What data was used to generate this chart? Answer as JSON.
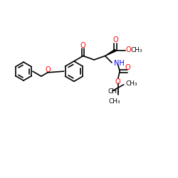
{
  "background_color": "#ffffff",
  "bond_color": "#000000",
  "oxygen_color": "#ff0000",
  "nitrogen_color": "#0000ff",
  "fig_width": 2.5,
  "fig_height": 2.5,
  "dpi": 100,
  "xlim": [
    0,
    10
  ],
  "ylim": [
    0,
    10
  ]
}
